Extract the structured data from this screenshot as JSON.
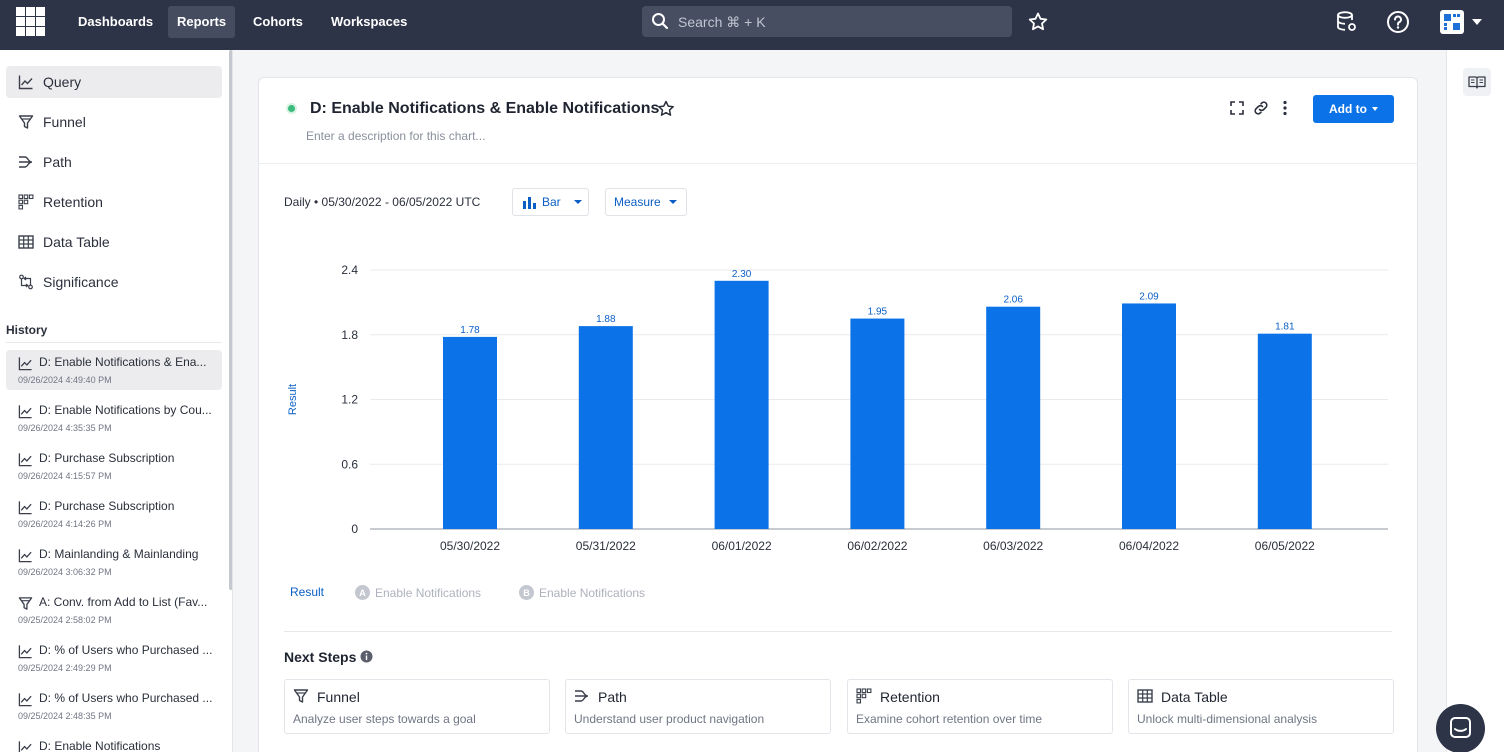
{
  "topnav": {
    "items": [
      "Dashboards",
      "Reports",
      "Cohorts",
      "Workspaces"
    ],
    "active": "Reports",
    "search_placeholder": "Search ⌘ + K"
  },
  "sidebar": {
    "reports": [
      {
        "label": "Query",
        "icon": "line-chart-icon"
      },
      {
        "label": "Funnel",
        "icon": "funnel-icon"
      },
      {
        "label": "Path",
        "icon": "path-icon"
      },
      {
        "label": "Retention",
        "icon": "retention-icon"
      },
      {
        "label": "Data Table",
        "icon": "table-icon"
      },
      {
        "label": "Significance",
        "icon": "significance-icon"
      }
    ],
    "history_title": "History",
    "history": [
      {
        "title": "D: Enable Notifications & Ena...",
        "time": "09/26/2024 4:49:40 PM",
        "icon": "line-chart-icon"
      },
      {
        "title": "D: Enable Notifications by Cou...",
        "time": "09/26/2024 4:35:35 PM",
        "icon": "line-chart-icon"
      },
      {
        "title": "D: Purchase Subscription",
        "time": "09/26/2024 4:15:57 PM",
        "icon": "line-chart-icon"
      },
      {
        "title": "D: Purchase Subscription",
        "time": "09/26/2024 4:14:26 PM",
        "icon": "line-chart-icon"
      },
      {
        "title": "D: Mainlanding & Mainlanding",
        "time": "09/26/2024 3:06:32 PM",
        "icon": "line-chart-icon"
      },
      {
        "title": "A: Conv. from Add to List (Fav...",
        "time": "09/25/2024 2:58:02 PM",
        "icon": "funnel-icon"
      },
      {
        "title": "D: % of Users who Purchased ...",
        "time": "09/25/2024 2:49:29 PM",
        "icon": "line-chart-icon"
      },
      {
        "title": "D: % of Users who Purchased ...",
        "time": "09/25/2024 2:48:35 PM",
        "icon": "line-chart-icon"
      },
      {
        "title": "D: Enable Notifications",
        "time": "",
        "icon": "line-chart-icon"
      }
    ]
  },
  "report": {
    "title": "D: Enable Notifications & Enable Notifications",
    "description_placeholder": "Enter a description for this chart...",
    "add_to_label": "Add to",
    "interval": "Daily",
    "date_range": "05/30/2022 - 06/05/2022 UTC",
    "chart_type_label": "Bar",
    "measure_label": "Measure",
    "legend": {
      "result": "Result",
      "a_badge": "A",
      "a_label": "Enable Notifications",
      "b_badge": "B",
      "b_label": "Enable Notifications"
    }
  },
  "chart_data": {
    "type": "bar",
    "categories": [
      "05/30/2022",
      "05/31/2022",
      "06/01/2022",
      "06/02/2022",
      "06/03/2022",
      "06/04/2022",
      "06/05/2022"
    ],
    "values": [
      1.78,
      1.88,
      2.3,
      1.95,
      2.06,
      2.09,
      1.81
    ],
    "data_labels": [
      "1.78",
      "1.88",
      "2.30",
      "1.95",
      "2.06",
      "2.09",
      "1.81"
    ],
    "ylabel": "Result",
    "ylim": [
      0,
      2.4
    ],
    "yticks": [
      "0",
      "0.6",
      "1.2",
      "1.8",
      "2.4"
    ],
    "ytick_values": [
      0,
      0.6,
      1.2,
      1.8,
      2.4
    ],
    "grid": true,
    "bar_color": "#0b72e7"
  },
  "next_steps": {
    "title": "Next Steps",
    "cards": [
      {
        "title": "Funnel",
        "desc": "Analyze user steps towards a goal",
        "icon": "funnel-icon"
      },
      {
        "title": "Path",
        "desc": "Understand user product navigation",
        "icon": "path-icon"
      },
      {
        "title": "Retention",
        "desc": "Examine cohort retention over time",
        "icon": "retention-icon"
      },
      {
        "title": "Data Table",
        "desc": "Unlock multi-dimensional analysis",
        "icon": "table-icon"
      }
    ]
  },
  "colors": {
    "nav_bg": "#2e3447",
    "accent": "#0b72e7",
    "status_green": "#3dbb7c"
  }
}
